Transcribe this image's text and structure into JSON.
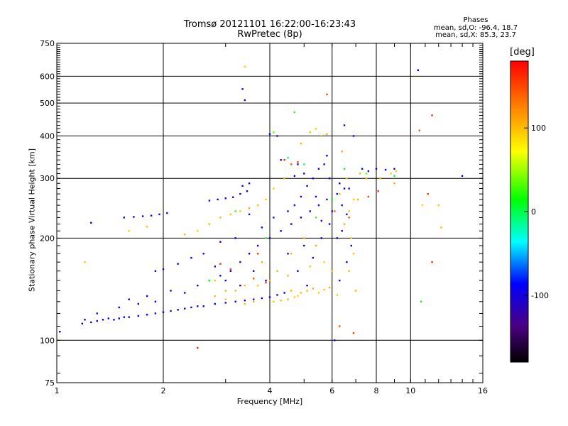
{
  "chart_data": {
    "type": "scatter",
    "title": "Tromsø 20121101 16:22:00-16:23:43",
    "subtitle": "RwPretec (8p)",
    "xlabel": "Frequency [MHz]",
    "ylabel": "Stationary phase Virtual Height [km]",
    "x_scale": "log",
    "y_scale": "log",
    "xlim": [
      1,
      16
    ],
    "ylim": [
      75,
      750
    ],
    "xticks": [
      1,
      2,
      4,
      6,
      8,
      10,
      16
    ],
    "xtick_labels": [
      "1",
      "2",
      "4",
      "6",
      "8",
      "10",
      "16"
    ],
    "yticks": [
      75,
      100,
      200,
      300,
      400,
      500,
      600,
      750
    ],
    "ytick_labels": [
      "75",
      "100",
      "200",
      "300",
      "400",
      "500",
      "600",
      "750"
    ],
    "grid": true,
    "phase_legend": {
      "heading": "Phases",
      "line1": "mean, sd,O: -96.4, 18.7",
      "line2": "mean, sd,X: 85.3, 23.7"
    },
    "colorbar": {
      "label": "[deg]",
      "ticks": [
        100,
        0,
        -100
      ],
      "tick_labels": [
        "100",
        "0",
        "-100"
      ],
      "range": [
        -180,
        180
      ]
    },
    "series": [
      {
        "values": [
          [
            1.02,
            106,
            -110
          ],
          [
            1.18,
            112,
            -115
          ],
          [
            1.2,
            115,
            -100
          ],
          [
            1.25,
            113,
            -105
          ],
          [
            1.3,
            114,
            -110
          ],
          [
            1.35,
            115,
            -100
          ],
          [
            1.4,
            116,
            -105
          ],
          [
            1.45,
            115,
            -110
          ],
          [
            1.5,
            116,
            -100
          ],
          [
            1.55,
            117,
            -105
          ],
          [
            1.6,
            117,
            -110
          ],
          [
            1.7,
            118,
            -100
          ],
          [
            1.8,
            119,
            -105
          ],
          [
            1.9,
            120,
            -110
          ],
          [
            2.0,
            121,
            -100
          ],
          [
            2.1,
            122,
            -105
          ],
          [
            2.2,
            123,
            -110
          ],
          [
            2.3,
            124,
            -100
          ],
          [
            2.4,
            125,
            -105
          ],
          [
            2.5,
            126,
            -110
          ],
          [
            2.6,
            126,
            -100
          ],
          [
            2.8,
            128,
            -105
          ],
          [
            3.0,
            129,
            -110
          ],
          [
            3.2,
            130,
            -100
          ],
          [
            3.4,
            131,
            -105
          ],
          [
            3.6,
            132,
            -110
          ],
          [
            3.8,
            133,
            -100
          ],
          [
            4.0,
            134,
            -105
          ],
          [
            4.2,
            136,
            -110
          ],
          [
            4.4,
            138,
            -100
          ],
          [
            1.3,
            120,
            -95
          ],
          [
            1.5,
            125,
            -100
          ],
          [
            1.6,
            132,
            -105
          ],
          [
            1.7,
            128,
            -110
          ],
          [
            1.8,
            135,
            -100
          ],
          [
            1.9,
            130,
            -105
          ],
          [
            2.1,
            140,
            -110
          ],
          [
            2.3,
            138,
            -100
          ],
          [
            2.5,
            145,
            -105
          ],
          [
            2.7,
            150,
            -110
          ],
          [
            2.9,
            155,
            -100
          ],
          [
            3.1,
            160,
            -105
          ],
          [
            3.3,
            170,
            -110
          ],
          [
            3.5,
            180,
            -100
          ],
          [
            3.7,
            190,
            -105
          ],
          [
            4.0,
            200,
            -110
          ],
          [
            4.3,
            210,
            -100
          ],
          [
            4.6,
            220,
            -105
          ],
          [
            4.9,
            230,
            -110
          ],
          [
            5.2,
            240,
            -100
          ],
          [
            5.5,
            250,
            -105
          ],
          [
            5.8,
            260,
            -110
          ],
          [
            6.2,
            270,
            -100
          ],
          [
            6.5,
            280,
            -105
          ],
          [
            4.5,
            180,
            -110
          ],
          [
            4.8,
            160,
            -100
          ],
          [
            5.0,
            190,
            -105
          ],
          [
            5.3,
            175,
            -110
          ],
          [
            5.6,
            200,
            -100
          ],
          [
            5.9,
            220,
            -105
          ],
          [
            6.4,
            210,
            -110
          ],
          [
            6.8,
            190,
            -100
          ],
          [
            6.6,
            170,
            -105
          ],
          [
            6.3,
            150,
            -110
          ],
          [
            5.1,
            145,
            -100
          ],
          [
            3.9,
            150,
            -105
          ],
          [
            3.6,
            160,
            -110
          ],
          [
            3.3,
            145,
            -100
          ],
          [
            3.0,
            150,
            -105
          ],
          [
            2.8,
            165,
            -110
          ],
          [
            1.55,
            230,
            -100
          ],
          [
            1.65,
            231,
            -105
          ],
          [
            1.75,
            232,
            -110
          ],
          [
            1.85,
            233,
            -100
          ],
          [
            1.95,
            235,
            -105
          ],
          [
            2.05,
            237,
            -110
          ],
          [
            1.25,
            222,
            -100
          ],
          [
            2.7,
            258,
            -105
          ],
          [
            2.85,
            260,
            -110
          ],
          [
            3.0,
            262,
            -100
          ],
          [
            3.15,
            264,
            -105
          ],
          [
            3.3,
            270,
            -110
          ],
          [
            3.45,
            275,
            -100
          ],
          [
            3.35,
            285,
            -105
          ],
          [
            3.5,
            290,
            -110
          ],
          [
            4.5,
            240,
            -100
          ],
          [
            4.7,
            250,
            -105
          ],
          [
            4.9,
            265,
            -110
          ],
          [
            5.1,
            285,
            -100
          ],
          [
            5.3,
            300,
            -105
          ],
          [
            5.5,
            320,
            -110
          ],
          [
            5.7,
            330,
            -100
          ],
          [
            5.0,
            310,
            -105
          ],
          [
            4.8,
            330,
            -110
          ],
          [
            5.9,
            300,
            -100
          ],
          [
            6.3,
            290,
            -105
          ],
          [
            6.7,
            280,
            -110
          ],
          [
            7.3,
            320,
            -100
          ],
          [
            7.6,
            315,
            -105
          ],
          [
            8.0,
            320,
            -110
          ],
          [
            8.5,
            318,
            -100
          ],
          [
            9.0,
            320,
            -105
          ],
          [
            4.2,
            400,
            -110
          ],
          [
            4.0,
            405,
            -100
          ],
          [
            3.35,
            550,
            -105
          ],
          [
            3.4,
            510,
            -110
          ],
          [
            10.5,
            625,
            -100
          ],
          [
            14,
            305,
            -105
          ],
          [
            6.5,
            430,
            -110
          ],
          [
            6.9,
            400,
            -100
          ],
          [
            6.1,
            100,
            -105
          ],
          [
            4.3,
            340,
            -110
          ],
          [
            4.7,
            305,
            -100
          ],
          [
            6.6,
            235,
            -105
          ],
          [
            6.2,
            200,
            -110
          ],
          [
            5.8,
            350,
            -100
          ],
          [
            5.4,
            265,
            -105
          ],
          [
            5.6,
            225,
            -110
          ],
          [
            4.1,
            230,
            -100
          ],
          [
            3.8,
            215,
            -105
          ],
          [
            3.5,
            235,
            -110
          ],
          [
            3.2,
            200,
            -100
          ],
          [
            2.9,
            195,
            -105
          ],
          [
            2.6,
            180,
            -110
          ],
          [
            2.4,
            175,
            -100
          ],
          [
            2.2,
            168,
            -105
          ],
          [
            2.0,
            162,
            -110
          ],
          [
            1.9,
            160,
            -100
          ],
          [
            6.0,
            240,
            -105
          ],
          [
            6.4,
            250,
            -110
          ]
        ]
      },
      {
        "values": [
          [
            4.1,
            130,
            90
          ],
          [
            4.3,
            131,
            95
          ],
          [
            4.5,
            132,
            100
          ],
          [
            4.7,
            134,
            85
          ],
          [
            4.9,
            138,
            90
          ],
          [
            5.1,
            140,
            95
          ],
          [
            5.3,
            142,
            100
          ],
          [
            5.5,
            138,
            85
          ],
          [
            5.7,
            141,
            90
          ],
          [
            5.9,
            143,
            95
          ],
          [
            4.6,
            140,
            100
          ],
          [
            4.8,
            135,
            85
          ],
          [
            3.4,
            128,
            90
          ],
          [
            3.6,
            130,
            95
          ],
          [
            3.0,
            132,
            85
          ],
          [
            2.8,
            135,
            90
          ],
          [
            5.6,
            400,
            95
          ],
          [
            5.8,
            405,
            100
          ],
          [
            5.4,
            420,
            85
          ],
          [
            5.2,
            410,
            90
          ],
          [
            4.9,
            380,
            95
          ],
          [
            6.4,
            360,
            100
          ],
          [
            6.6,
            300,
            85
          ],
          [
            6.9,
            260,
            90
          ],
          [
            6.7,
            240,
            95
          ],
          [
            6.5,
            220,
            100
          ],
          [
            6.8,
            200,
            85
          ],
          [
            6.9,
            180,
            90
          ],
          [
            6.7,
            160,
            95
          ],
          [
            4.4,
            300,
            100
          ],
          [
            4.1,
            280,
            85
          ],
          [
            3.9,
            260,
            90
          ],
          [
            3.7,
            250,
            95
          ],
          [
            3.5,
            245,
            100
          ],
          [
            3.3,
            240,
            85
          ],
          [
            3.1,
            235,
            90
          ],
          [
            2.9,
            230,
            95
          ],
          [
            2.7,
            220,
            100
          ],
          [
            2.5,
            210,
            85
          ],
          [
            4.6,
            180,
            90
          ],
          [
            5.0,
            200,
            95
          ],
          [
            5.4,
            190,
            100
          ],
          [
            5.7,
            170,
            85
          ],
          [
            6.0,
            160,
            90
          ],
          [
            3.8,
            170,
            95
          ],
          [
            4.2,
            160,
            100
          ],
          [
            1.6,
            210,
            85
          ],
          [
            1.8,
            216,
            90
          ],
          [
            2.3,
            205,
            95
          ],
          [
            9.0,
            290,
            100
          ],
          [
            10.8,
            250,
            85
          ],
          [
            12.0,
            250,
            90
          ],
          [
            12.2,
            215,
            95
          ],
          [
            7.0,
            140,
            100
          ],
          [
            6.2,
            136,
            85
          ],
          [
            5.2,
            165,
            90
          ],
          [
            4.5,
            155,
            95
          ],
          [
            4.0,
            150,
            100
          ],
          [
            3.7,
            145,
            85
          ],
          [
            3.4,
            145,
            90
          ],
          [
            3.2,
            140,
            95
          ],
          [
            3.0,
            140,
            100
          ],
          [
            2.8,
            150,
            85
          ],
          [
            6.3,
            270,
            90
          ],
          [
            7.1,
            260,
            95
          ],
          [
            8.2,
            300,
            100
          ],
          [
            3.4,
            640,
            85
          ],
          [
            1.2,
            170,
            90
          ],
          [
            7.2,
            310,
            95
          ],
          [
            7.5,
            300,
            100
          ],
          [
            8.8,
            310,
            85
          ],
          [
            9.1,
            315,
            90
          ]
        ]
      },
      {
        "values": [
          [
            5.8,
            530,
            150
          ],
          [
            11.5,
            460,
            160
          ],
          [
            10.6,
            415,
            140
          ],
          [
            11.2,
            270,
            150
          ],
          [
            11.5,
            170,
            160
          ],
          [
            4.6,
            330,
            140
          ],
          [
            4.8,
            335,
            150
          ],
          [
            4.4,
            340,
            160
          ],
          [
            6.3,
            110,
            140
          ],
          [
            6.9,
            105,
            150
          ],
          [
            3.9,
            148,
            160
          ],
          [
            3.6,
            152,
            140
          ],
          [
            3.1,
            162,
            150
          ],
          [
            2.9,
            168,
            160
          ],
          [
            6.7,
            230,
            140
          ],
          [
            7.6,
            265,
            150
          ],
          [
            8.1,
            275,
            160
          ],
          [
            6.1,
            240,
            140
          ],
          [
            3.7,
            180,
            150
          ],
          [
            2.5,
            95,
            160
          ]
        ]
      },
      {
        "values": [
          [
            4.1,
            410,
            20
          ],
          [
            4.7,
            470,
            10
          ],
          [
            10.7,
            130,
            0
          ],
          [
            9.0,
            305,
            -10
          ],
          [
            5.4,
            230,
            15
          ],
          [
            5.0,
            330,
            -15
          ],
          [
            4.5,
            345,
            -20
          ],
          [
            7.5,
            310,
            20
          ],
          [
            3.2,
            240,
            10
          ],
          [
            6.0,
            260,
            0
          ],
          [
            2.7,
            150,
            -10
          ],
          [
            3.9,
            200,
            15
          ],
          [
            6.5,
            320,
            -5
          ]
        ]
      }
    ]
  }
}
